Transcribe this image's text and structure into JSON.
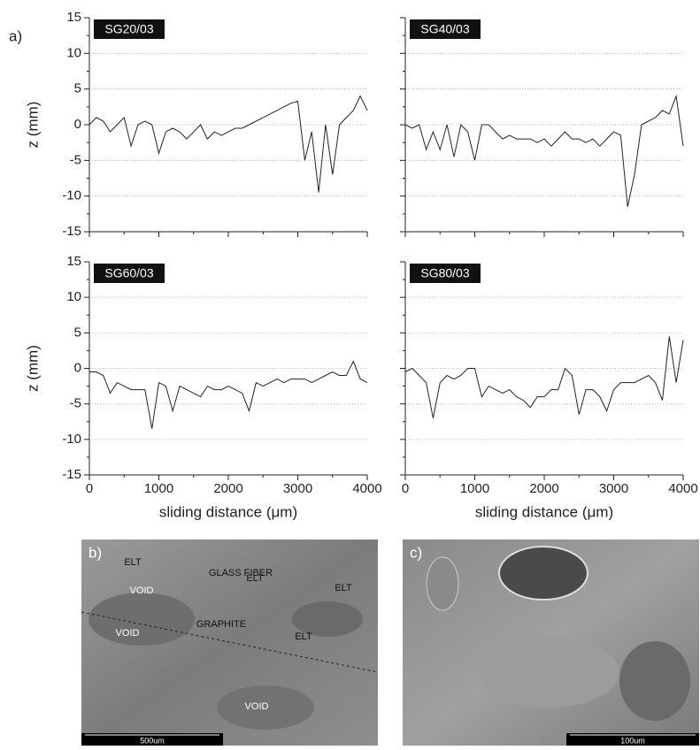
{
  "chart_data": [
    {
      "type": "line",
      "title": "SG20/03",
      "ylabel": "z (mm)",
      "show_ytick_labels": true,
      "show_xtick_labels": false,
      "xlim": [
        0,
        4000
      ],
      "xticks": [
        0,
        1000,
        2000,
        3000,
        4000
      ],
      "ylim": [
        -15,
        15
      ],
      "yticks": [
        -15,
        -10,
        -5,
        0,
        5,
        10,
        15
      ],
      "grid": true,
      "series": [
        {
          "name": "SG20/03",
          "color": "#222222",
          "x": [
            0,
            100,
            200,
            300,
            400,
            500,
            600,
            700,
            800,
            900,
            1000,
            1100,
            1200,
            1300,
            1400,
            1500,
            1600,
            1700,
            1800,
            1900,
            2000,
            2100,
            2200,
            2300,
            2400,
            2500,
            2600,
            2700,
            2800,
            2900,
            3000,
            3100,
            3200,
            3300,
            3400,
            3500,
            3600,
            3700,
            3800,
            3900,
            4000
          ],
          "values": [
            0,
            1,
            0.5,
            -1,
            0,
            1,
            -3,
            0,
            0.5,
            0,
            -4,
            -1,
            -0.5,
            -1,
            -2,
            -1,
            0,
            -2,
            -1,
            -1.5,
            -1,
            -0.5,
            -0.5,
            0,
            0.5,
            1,
            1.5,
            2,
            2.5,
            3,
            3.3,
            -5,
            -1,
            -9.5,
            0,
            -7,
            0,
            1,
            2,
            4,
            2
          ]
        }
      ]
    },
    {
      "type": "line",
      "title": "SG40/03",
      "show_ytick_labels": false,
      "show_xtick_labels": false,
      "xlim": [
        0,
        4000
      ],
      "xticks": [
        0,
        1000,
        2000,
        3000,
        4000
      ],
      "ylim": [
        -15,
        15
      ],
      "yticks": [
        -15,
        -10,
        -5,
        0,
        5,
        10,
        15
      ],
      "grid": true,
      "series": [
        {
          "name": "SG40/03",
          "color": "#222222",
          "x": [
            0,
            100,
            200,
            300,
            400,
            500,
            600,
            700,
            800,
            900,
            1000,
            1100,
            1200,
            1300,
            1400,
            1500,
            1600,
            1700,
            1800,
            1900,
            2000,
            2100,
            2200,
            2300,
            2400,
            2500,
            2600,
            2700,
            2800,
            2900,
            3000,
            3100,
            3200,
            3300,
            3400,
            3500,
            3600,
            3700,
            3800,
            3900,
            4000
          ],
          "values": [
            0,
            -0.5,
            0,
            -3.5,
            -1,
            -3.5,
            0,
            -4.5,
            0,
            -1,
            -5,
            0,
            0,
            -1,
            -2,
            -1.5,
            -2,
            -2,
            -2,
            -2.5,
            -2,
            -3,
            -2,
            -1,
            -2,
            -2,
            -2.5,
            -2,
            -3,
            -2,
            -1,
            -1.5,
            -11.5,
            -7,
            0,
            0.5,
            1,
            2,
            1.5,
            4,
            -3
          ]
        }
      ]
    },
    {
      "type": "line",
      "title": "SG60/03",
      "ylabel": "z (mm)",
      "xlabel": "sliding distance (μm)",
      "show_ytick_labels": true,
      "show_xtick_labels": true,
      "xlim": [
        0,
        4000
      ],
      "xticks": [
        0,
        1000,
        2000,
        3000,
        4000
      ],
      "ylim": [
        -15,
        15
      ],
      "yticks": [
        -15,
        -10,
        -5,
        0,
        5,
        10,
        15
      ],
      "grid": true,
      "series": [
        {
          "name": "SG60/03",
          "color": "#222222",
          "x": [
            0,
            100,
            200,
            300,
            400,
            500,
            600,
            700,
            800,
            900,
            1000,
            1100,
            1200,
            1300,
            1400,
            1500,
            1600,
            1700,
            1800,
            1900,
            2000,
            2100,
            2200,
            2300,
            2400,
            2500,
            2600,
            2700,
            2800,
            2900,
            3000,
            3100,
            3200,
            3300,
            3400,
            3500,
            3600,
            3700,
            3800,
            3900,
            4000
          ],
          "values": [
            -0.5,
            -0.5,
            -1,
            -3.5,
            -2,
            -2.5,
            -3,
            -3,
            -3,
            -8.5,
            -2,
            -2.5,
            -6,
            -2.5,
            -3,
            -3.5,
            -4,
            -2.5,
            -3,
            -3,
            -2.5,
            -3,
            -3.5,
            -6,
            -2,
            -2.5,
            -2,
            -1.5,
            -2,
            -1.5,
            -1.5,
            -1.5,
            -2,
            -1.5,
            -1,
            -0.5,
            -1,
            -1,
            1,
            -1.5,
            -2
          ]
        }
      ]
    },
    {
      "type": "line",
      "title": "SG80/03",
      "xlabel": "sliding distance (μm)",
      "show_ytick_labels": false,
      "show_xtick_labels": true,
      "xlim": [
        0,
        4000
      ],
      "xticks": [
        0,
        1000,
        2000,
        3000,
        4000
      ],
      "ylim": [
        -15,
        15
      ],
      "yticks": [
        -15,
        -10,
        -5,
        0,
        5,
        10,
        15
      ],
      "grid": true,
      "series": [
        {
          "name": "SG80/03",
          "color": "#222222",
          "x": [
            0,
            100,
            200,
            300,
            400,
            500,
            600,
            700,
            800,
            900,
            1000,
            1100,
            1200,
            1300,
            1400,
            1500,
            1600,
            1700,
            1800,
            1900,
            2000,
            2100,
            2200,
            2300,
            2400,
            2500,
            2600,
            2700,
            2800,
            2900,
            3000,
            3100,
            3200,
            3300,
            3400,
            3500,
            3600,
            3700,
            3800,
            3900,
            4000
          ],
          "values": [
            -0.5,
            0,
            -1,
            -2,
            -7,
            -2,
            -1,
            -1.5,
            -1,
            0,
            0,
            -4,
            -2.5,
            -3,
            -3.5,
            -3,
            -4,
            -4.5,
            -5.5,
            -4,
            -4,
            -3,
            -3,
            0,
            -1,
            -6.5,
            -3,
            -3,
            -4,
            -6,
            -3,
            -2,
            -2,
            -2,
            -1.5,
            -1,
            -2,
            -4.5,
            4.5,
            -2,
            4
          ]
        }
      ]
    }
  ],
  "figure": {
    "panel_label": "a)",
    "micrographs": [
      {
        "label": "b)",
        "scale_bar": "500um",
        "annotations": [
          "ELT",
          "GLASS FIBER",
          "VOID",
          "ELT",
          "ELT",
          "VOID",
          "GRAPHITE",
          "ELT",
          "VOID"
        ]
      },
      {
        "label": "c)",
        "scale_bar": "100um",
        "annotations": []
      }
    ]
  }
}
